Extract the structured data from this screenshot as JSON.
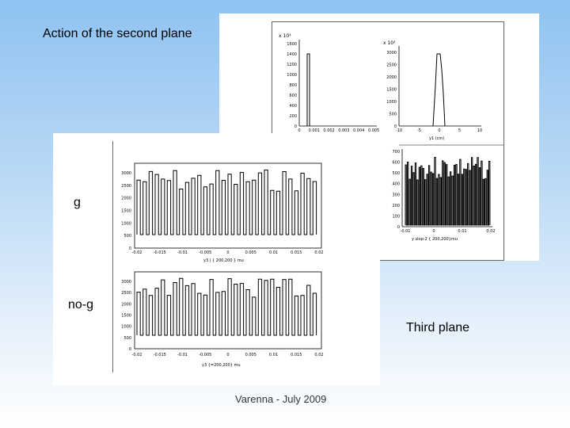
{
  "slide": {
    "title": "Action of the second plane",
    "label_g": "g",
    "label_no_g": "no-g",
    "label_third": "Third plane",
    "footer": "Varenna - July 2009"
  },
  "plots": {
    "top_left": {
      "exponent": "x 10³",
      "y_ticks": [
        "1600",
        "1400",
        "1200",
        "1000",
        "800",
        "600",
        "400",
        "200",
        "0"
      ],
      "x_ticks": [
        "0",
        "0.001",
        "0.002",
        "0.003",
        "0.004",
        "0.005"
      ]
    },
    "top_right": {
      "exponent": "x 10²",
      "y_ticks": [
        "3000",
        "2500",
        "2000",
        "1500",
        "1000",
        "500",
        "0"
      ],
      "x_ticks": [
        "-10",
        "-5",
        "0",
        "5",
        "10"
      ],
      "xlabel": "y1 (cm)"
    },
    "third_plane": {
      "y_ticks": [
        "700",
        "600",
        "500",
        "400",
        "300",
        "200",
        "100",
        "0"
      ],
      "x_ticks": [
        "-0.01",
        "0",
        "0.01",
        "0.02"
      ],
      "xlabel": "y slop:2 { 200,200}mu"
    },
    "g": {
      "y_ticks": [
        "3000",
        "2500",
        "2000",
        "1500",
        "1000",
        "500",
        "0"
      ],
      "x_ticks": [
        "-0.02",
        "-0.015",
        "-0.01",
        "-0.005",
        "0",
        "0.005",
        "0.01",
        "0.015",
        "0.02"
      ],
      "xlabel": "y3 | { 200,200 } mu"
    },
    "no_g": {
      "y_ticks": [
        "3000",
        "2500",
        "2000",
        "1500",
        "1000",
        "500",
        "0"
      ],
      "x_ticks": [
        "-0.02",
        "-0.015",
        "-0.01",
        "-0.005",
        "0",
        "0.005",
        "0.01",
        "0.015",
        "0.02"
      ],
      "xlabel": "y3 {=200,200} mu"
    }
  }
}
